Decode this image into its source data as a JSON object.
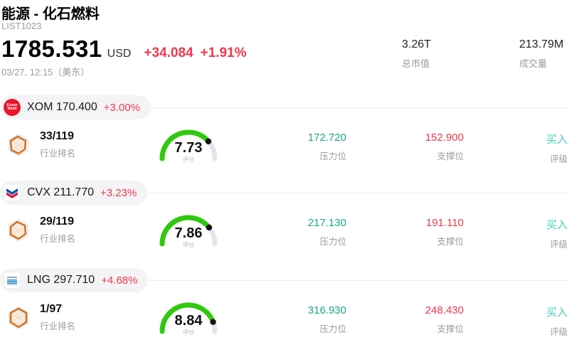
{
  "header": {
    "title": "能源 - 化石燃料",
    "list_id": "LIST1023",
    "price": "1785.531",
    "currency": "USD",
    "change": "+34.084",
    "change_pct": "+1.91%",
    "timestamp": "03/27, 12:15（美东）",
    "market_cap": {
      "value": "3.26T",
      "label": "总市值"
    },
    "volume": {
      "value": "213.79M",
      "label": "成交量"
    }
  },
  "labels": {
    "rank": "行业排名",
    "score": "评分",
    "pressure": "压力位",
    "support": "支撑位",
    "rating": "评级"
  },
  "colors": {
    "up_red": "#f4374b",
    "pressure_teal": "#1fa385",
    "rating_teal": "#3fd1bd",
    "gauge_green": "#2fc90e",
    "gauge_track": "#e3e5ed"
  },
  "rows": [
    {
      "symbol": "XOM",
      "logo": "exxon-mobil",
      "price": "170.400",
      "change_pct": "+3.00%",
      "symbol_price": "XOM 170.400",
      "rank": "33/119",
      "score": "7.73",
      "pressure": "172.720",
      "support": "152.900",
      "rating": "买入"
    },
    {
      "symbol": "CVX",
      "logo": "chevron",
      "price": "211.770",
      "change_pct": "+3.23%",
      "symbol_price": "CVX 211.770",
      "rank": "29/119",
      "score": "7.86",
      "pressure": "217.130",
      "support": "191.110",
      "rating": "买入"
    },
    {
      "symbol": "LNG",
      "logo": "cheniere",
      "price": "297.710",
      "change_pct": "+4.68%",
      "symbol_price": "LNG 297.710",
      "rank": "1/97",
      "score": "8.84",
      "pressure": "316.930",
      "support": "248.430",
      "rating": "买入"
    }
  ]
}
